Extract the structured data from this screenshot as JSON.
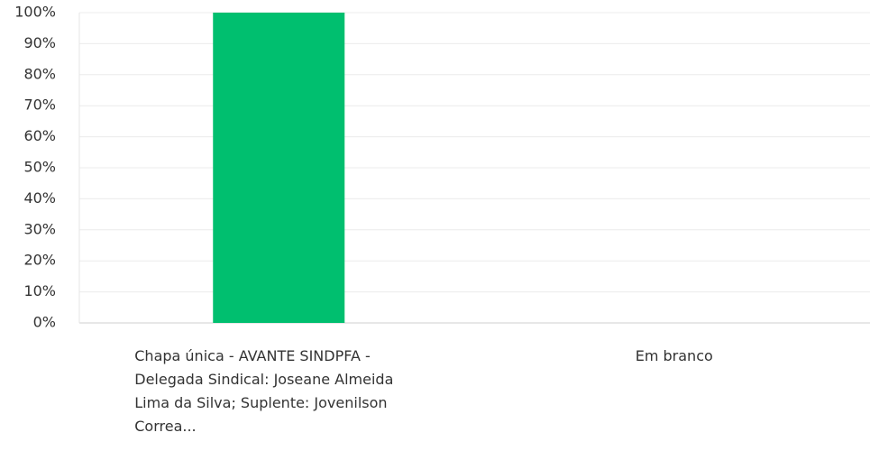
{
  "chart_data": {
    "type": "bar",
    "categories": [
      "Chapa única - AVANTE SINDPFA - Delegada Sindical: Joseane Almeida Lima da Silva; Suplente: Jovenilson Correa...",
      "Em branco"
    ],
    "values": [
      100,
      0
    ],
    "color": "#00bf6f",
    "ylim": [
      0,
      100
    ],
    "yticks": [
      {
        "value": 0,
        "label": "0%"
      },
      {
        "value": 10,
        "label": "10%"
      },
      {
        "value": 20,
        "label": "20%"
      },
      {
        "value": 30,
        "label": "30%"
      },
      {
        "value": 40,
        "label": "40%"
      },
      {
        "value": 50,
        "label": "50%"
      },
      {
        "value": 60,
        "label": "60%"
      },
      {
        "value": 70,
        "label": "70%"
      },
      {
        "value": 80,
        "label": "80%"
      },
      {
        "value": 90,
        "label": "90%"
      },
      {
        "value": 100,
        "label": "100%"
      }
    ],
    "grid": true
  }
}
